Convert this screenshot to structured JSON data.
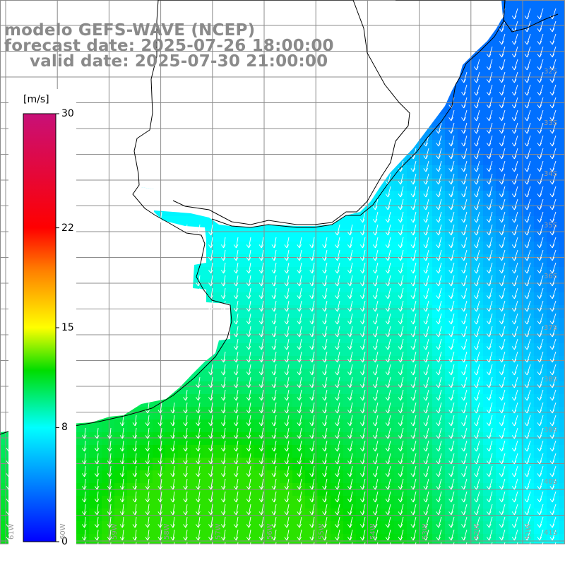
{
  "title": {
    "line1": "modelo GEFS-WAVE (NCEP)",
    "line2": "forecast date: 2025-07-26 18:00:00",
    "line3": "valid date: 2025-07-30 21:00:00"
  },
  "colorbar": {
    "unit": "[m/s]",
    "ticks": [
      {
        "label": "30",
        "value": 30
      },
      {
        "label": "22",
        "value": 22
      },
      {
        "label": "15",
        "value": 15
      },
      {
        "label": "8",
        "value": 8
      },
      {
        "label": "0",
        "value": 0
      }
    ],
    "stops": [
      {
        "value": 0,
        "color": "#0000ff"
      },
      {
        "value": 4,
        "color": "#0080ff"
      },
      {
        "value": 8,
        "color": "#00ffff"
      },
      {
        "value": 12,
        "color": "#00dd00"
      },
      {
        "value": 15,
        "color": "#ffff00"
      },
      {
        "value": 19,
        "color": "#ff8000"
      },
      {
        "value": 22,
        "color": "#ff0000"
      },
      {
        "value": 30,
        "color": "#c81078"
      }
    ]
  },
  "map": {
    "field": "wind speed",
    "colormap": "blue-cyan-green-yellow-red-magenta",
    "land_color": "#ffffff",
    "grid_color": "#8c8c8c",
    "arrow_color": "#ffffff",
    "grid": true,
    "lat_labels": [
      "32S",
      "33S",
      "34S",
      "35S",
      "36S",
      "37S",
      "38S",
      "39S",
      "40S",
      "41S"
    ],
    "lon_labels": [
      "61W",
      "60W",
      "59W",
      "58W",
      "57W",
      "56W",
      "55W",
      "54W",
      "53W",
      "52W",
      "51W"
    ],
    "wind_direction": "from north (arrows pointing south)",
    "speed_range_ms": [
      4,
      12
    ]
  }
}
